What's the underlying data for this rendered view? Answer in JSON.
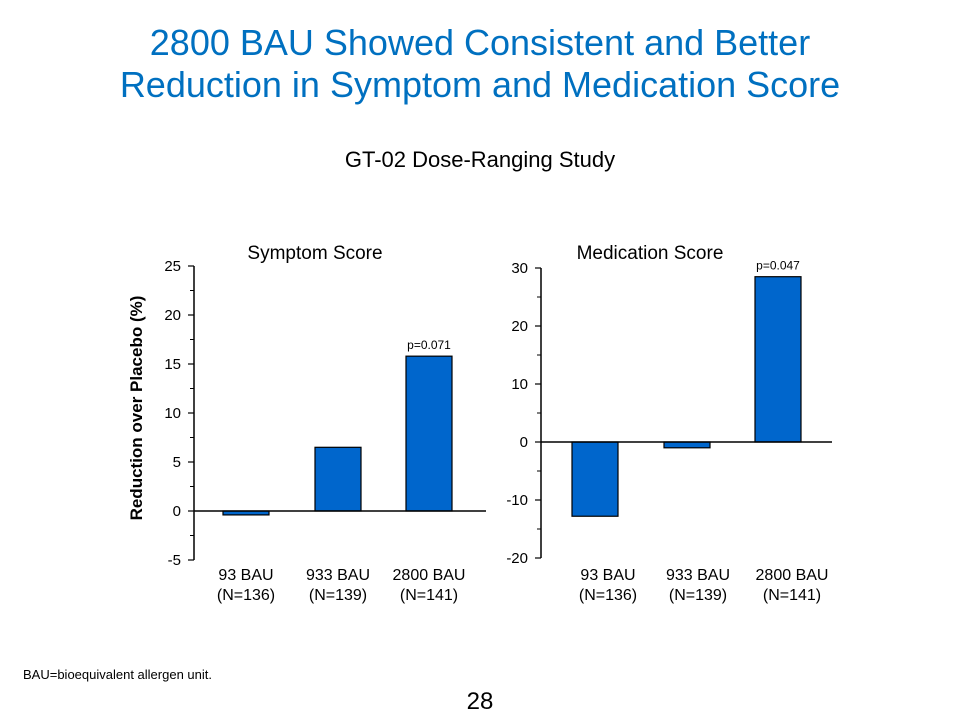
{
  "title_line1": "2800 BAU Showed Consistent and Better",
  "title_line2": "Reduction in Symptom and Medication Score",
  "subtitle": "GT-02 Dose-Ranging Study",
  "footnote": "BAU=bioequivalent allergen unit.",
  "page_number": "28",
  "colors": {
    "title": "#0070C0",
    "bar": "#0066CC"
  },
  "chart_data": [
    {
      "type": "bar",
      "title": "Symptom Score",
      "ylabel": "Reduction over Placebo (%)",
      "categories": [
        "93 BAU",
        "933 BAU",
        "2800 BAU"
      ],
      "category_notes": [
        "(N=136)",
        "(N=139)",
        "(N=141)"
      ],
      "values": [
        -0.4,
        6.5,
        15.8
      ],
      "ylim": [
        -5,
        25
      ],
      "yticks": [
        -5,
        0,
        5,
        10,
        15,
        20,
        25
      ],
      "annotations": [
        {
          "category": "2800 BAU",
          "text": "p=0.071"
        }
      ],
      "grid": false
    },
    {
      "type": "bar",
      "title": "Medication Score",
      "ylabel": "",
      "categories": [
        "93 BAU",
        "933 BAU",
        "2800 BAU"
      ],
      "category_notes": [
        "(N=136)",
        "(N=139)",
        "(N=141)"
      ],
      "values": [
        -12.8,
        -1.0,
        28.5
      ],
      "ylim": [
        -20,
        30
      ],
      "yticks": [
        -20,
        -10,
        0,
        10,
        20,
        30
      ],
      "annotations": [
        {
          "category": "2800 BAU",
          "text": "p=0.047"
        }
      ],
      "grid": false
    }
  ]
}
